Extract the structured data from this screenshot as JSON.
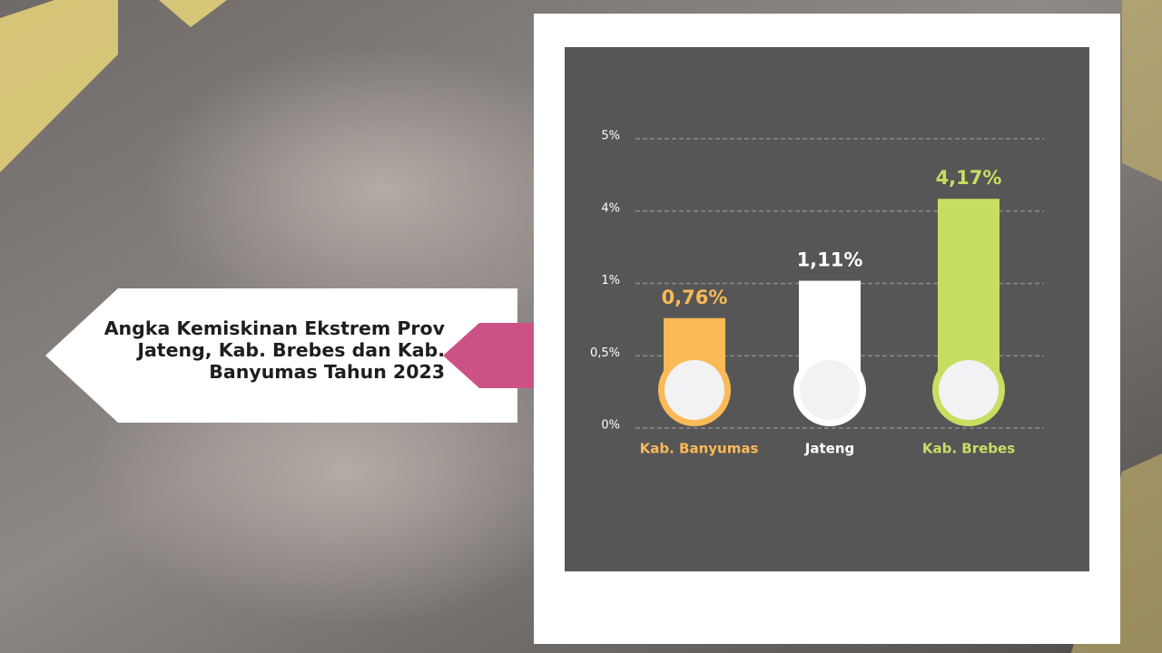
{
  "chart_data": {
    "type": "bar",
    "title": "Angka Kemiskinan Ekstrem Prov Jateng, Kab. Brebes dan Kab. Banyumas Tahun 2023",
    "categories": [
      "Kab. Banyumas",
      "Jateng",
      "Kab. Brebes"
    ],
    "values": [
      0.76,
      1.11,
      4.17
    ],
    "value_labels": [
      "0,76%",
      "1,11%",
      "4,17%"
    ],
    "colors": [
      "#fbb957",
      "#ffffff",
      "#c6df61"
    ],
    "ylim": [
      0,
      5
    ],
    "yticks": [
      {
        "value": 0,
        "label": "0%"
      },
      {
        "value": 0.5,
        "label": "0,5%"
      },
      {
        "value": 1,
        "label": "1%"
      },
      {
        "value": 4,
        "label": "4%"
      },
      {
        "value": 5,
        "label": "5%"
      }
    ],
    "grid": true
  }
}
